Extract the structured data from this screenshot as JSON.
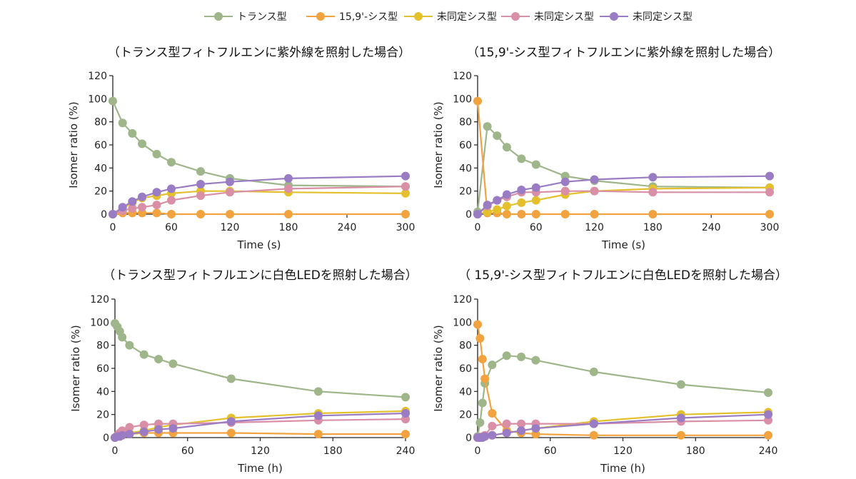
{
  "legend": [
    {
      "label": "トランス型",
      "color": "#9eb68a"
    },
    {
      "label": "15,9'-シス型",
      "color": "#f2a340"
    },
    {
      "label": "未同定シス型",
      "color": "#e3c02c"
    },
    {
      "label": "未同定シス型",
      "color": "#d98fa6"
    },
    {
      "label": "未同定シス型",
      "color": "#9a7cc4"
    }
  ],
  "chart_data": [
    {
      "type": "line",
      "title": "（トランス型フィトフルエンに紫外線を照射した場合）",
      "xlabel": "Time (s)",
      "ylabel": "Isomer ratio (%)",
      "xlim": [
        0,
        300
      ],
      "ylim": [
        0,
        120
      ],
      "xticks": [
        0,
        60,
        120,
        180,
        240,
        300
      ],
      "yticks": [
        0,
        20,
        40,
        60,
        80,
        100,
        120
      ],
      "grid": false,
      "x": [
        0,
        10,
        20,
        30,
        45,
        60,
        90,
        120,
        180,
        300
      ],
      "series": [
        {
          "name": "トランス型",
          "color": "#9eb68a",
          "values": [
            98,
            79,
            70,
            61,
            52,
            45,
            37,
            31,
            25,
            24
          ]
        },
        {
          "name": "15,9'-シス型",
          "color": "#f2a340",
          "values": [
            0,
            1,
            1,
            1,
            1,
            0,
            0,
            0,
            0,
            0
          ]
        },
        {
          "name": "未同定シス型",
          "color": "#e3c02c",
          "values": [
            0,
            5,
            10,
            14,
            16,
            18,
            20,
            20,
            19,
            18
          ]
        },
        {
          "name": "未同定シス型",
          "color": "#d98fa6",
          "values": [
            0,
            3,
            5,
            6,
            8,
            12,
            16,
            19,
            22,
            24
          ]
        },
        {
          "name": "未同定シス型",
          "color": "#9a7cc4",
          "values": [
            0,
            6,
            11,
            15,
            19,
            22,
            26,
            28,
            31,
            33
          ]
        }
      ]
    },
    {
      "type": "line",
      "title": "（15,9'-シス型フィトフルエンに紫外線を照射した場合）",
      "xlabel": "Time (s)",
      "ylabel": "Isomer ratio (%)",
      "xlim": [
        0,
        300
      ],
      "ylim": [
        0,
        120
      ],
      "xticks": [
        0,
        60,
        120,
        180,
        240,
        300
      ],
      "yticks": [
        0,
        20,
        40,
        60,
        80,
        100,
        120
      ],
      "grid": false,
      "x": [
        0,
        10,
        20,
        30,
        45,
        60,
        90,
        120,
        180,
        300
      ],
      "series": [
        {
          "name": "トランス型",
          "color": "#9eb68a",
          "values": [
            2,
            76,
            68,
            58,
            48,
            43,
            33,
            29,
            24,
            23
          ]
        },
        {
          "name": "15,9'-シス型",
          "color": "#f2a340",
          "values": [
            98,
            1,
            1,
            0,
            0,
            0,
            0,
            0,
            0,
            0
          ]
        },
        {
          "name": "未同定シス型",
          "color": "#e3c02c",
          "values": [
            0,
            2,
            4,
            7,
            10,
            12,
            17,
            20,
            22,
            23
          ]
        },
        {
          "name": "未同定シス型",
          "color": "#d98fa6",
          "values": [
            0,
            7,
            12,
            15,
            19,
            19,
            20,
            20,
            19,
            19
          ]
        },
        {
          "name": "未同定シス型",
          "color": "#9a7cc4",
          "values": [
            0,
            8,
            12,
            17,
            21,
            23,
            28,
            30,
            32,
            33
          ]
        }
      ]
    },
    {
      "type": "line",
      "title": "（トランス型フィトフルエンに白色LEDを照射した場合）",
      "xlabel": "Time (h)",
      "ylabel": "Isomer ratio (%)",
      "xlim": [
        0,
        240
      ],
      "ylim": [
        0,
        120
      ],
      "xticks": [
        0,
        60,
        120,
        180,
        240
      ],
      "yticks": [
        0,
        20,
        40,
        60,
        80,
        100,
        120
      ],
      "grid": false,
      "x": [
        0,
        2,
        4,
        6,
        12,
        24,
        36,
        48,
        96,
        168,
        240
      ],
      "series": [
        {
          "name": "トランス型",
          "color": "#9eb68a",
          "values": [
            99,
            96,
            92,
            87,
            80,
            72,
            68,
            64,
            51,
            40,
            35
          ]
        },
        {
          "name": "15,9'-シス型",
          "color": "#f2a340",
          "values": [
            0,
            1,
            2,
            3,
            3,
            4,
            4,
            4,
            4,
            3,
            3
          ]
        },
        {
          "name": "未同定シス型",
          "color": "#e3c02c",
          "values": [
            0,
            1,
            1,
            2,
            4,
            6,
            9,
            11,
            17,
            21,
            23
          ]
        },
        {
          "name": "未同定シス型",
          "color": "#d98fa6",
          "values": [
            0,
            2,
            4,
            6,
            9,
            11,
            12,
            12,
            13,
            15,
            16
          ]
        },
        {
          "name": "未同定シス型",
          "color": "#9a7cc4",
          "values": [
            0,
            1,
            1,
            2,
            3,
            5,
            7,
            8,
            14,
            19,
            21
          ]
        }
      ]
    },
    {
      "type": "line",
      "title": "（ 15,9'-シス型フィトフルエンに白色LEDを照射した場合）",
      "xlabel": "Time (h)",
      "ylabel": "Isomer ratio (%)",
      "xlim": [
        0,
        240
      ],
      "ylim": [
        0,
        120
      ],
      "xticks": [
        0,
        60,
        120,
        180,
        240
      ],
      "yticks": [
        0,
        20,
        40,
        60,
        80,
        100,
        120
      ],
      "grid": false,
      "x": [
        0,
        2,
        4,
        6,
        12,
        24,
        36,
        48,
        96,
        168,
        240
      ],
      "series": [
        {
          "name": "トランス型",
          "color": "#9eb68a",
          "values": [
            1,
            13,
            30,
            47,
            63,
            71,
            70,
            67,
            57,
            46,
            39
          ]
        },
        {
          "name": "15,9'-シス型",
          "color": "#f2a340",
          "values": [
            98,
            86,
            68,
            51,
            21,
            6,
            4,
            3,
            2,
            2,
            2
          ]
        },
        {
          "name": "未同定シス型",
          "color": "#e3c02c",
          "values": [
            0,
            0,
            1,
            1,
            2,
            4,
            6,
            8,
            14,
            20,
            22
          ]
        },
        {
          "name": "未同定シス型",
          "color": "#d98fa6",
          "values": [
            0,
            0,
            1,
            2,
            10,
            12,
            12,
            12,
            12,
            14,
            15
          ]
        },
        {
          "name": "未同定シス型",
          "color": "#9a7cc4",
          "values": [
            0,
            0,
            0,
            1,
            2,
            4,
            6,
            8,
            12,
            17,
            20
          ]
        }
      ]
    }
  ]
}
